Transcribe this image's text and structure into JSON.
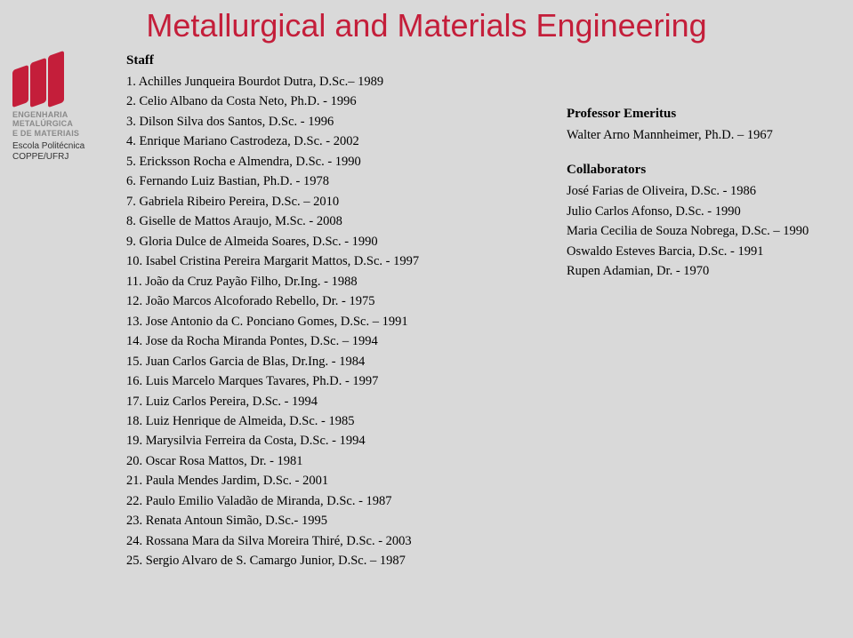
{
  "title": "Metallurgical and Materials Engineering",
  "logo": {
    "line1": "ENGENHARIA",
    "line2": "METALÚRGICA",
    "line3": "E DE MATERIAIS",
    "subline1": "Escola Politécnica",
    "subline2": "COPPE/UFRJ"
  },
  "staff_heading": "Staff",
  "staff": [
    "1. Achilles Junqueira Bourdot Dutra, D.Sc.– 1989",
    "2. Celio Albano da Costa Neto, Ph.D. - 1996",
    "3. Dilson Silva dos Santos, D.Sc. - 1996",
    "4. Enrique Mariano Castrodeza, D.Sc. - 2002",
    "5. Ericksson Rocha e Almendra, D.Sc. - 1990",
    "6. Fernando Luiz Bastian, Ph.D. - 1978",
    "7. Gabriela Ribeiro Pereira, D.Sc. – 2010",
    "8. Giselle de Mattos Araujo, M.Sc. - 2008",
    "9. Gloria Dulce de Almeida Soares, D.Sc. - 1990",
    "10. Isabel Cristina Pereira Margarit Mattos, D.Sc. - 1997",
    "11. João da Cruz Payão Filho, Dr.Ing. - 1988",
    "12. João Marcos Alcoforado Rebello, Dr. - 1975",
    "13. Jose Antonio da C. Ponciano Gomes, D.Sc. – 1991",
    "14. Jose da Rocha Miranda Pontes, D.Sc. – 1994",
    "15. Juan Carlos Garcia de Blas, Dr.Ing. - 1984",
    "16. Luis Marcelo Marques Tavares, Ph.D. - 1997",
    "17. Luiz Carlos Pereira, D.Sc. - 1994",
    "18. Luiz Henrique de Almeida, D.Sc. - 1985",
    "19. Marysilvia Ferreira da Costa, D.Sc. - 1994",
    "20. Oscar Rosa Mattos, Dr. - 1981",
    "21. Paula Mendes Jardim, D.Sc. - 2001",
    "22. Paulo Emilio Valadão de Miranda, D.Sc. - 1987",
    "23. Renata Antoun Simão, D.Sc.- 1995",
    "24. Rossana Mara da Silva Moreira Thiré, D.Sc. - 2003",
    "25. Sergio Alvaro de S. Camargo Junior, D.Sc. – 1987"
  ],
  "emeritus_heading": "Professor Emeritus",
  "emeritus": [
    "Walter Arno Mannheimer, Ph.D. – 1967"
  ],
  "collab_heading": "Collaborators",
  "collaborators": [
    "José Farias de Oliveira, D.Sc. - 1986",
    "Julio Carlos Afonso,  D.Sc. - 1990",
    "Maria Cecilia de Souza Nobrega, D.Sc. – 1990",
    "Oswaldo Esteves Barcia, D.Sc. - 1991",
    "Rupen Adamian, Dr. - 1970"
  ],
  "colors": {
    "background": "#d9d9d9",
    "title": "#c41e3a",
    "text": "#000000",
    "logo_red": "#c41e3a",
    "logo_gray": "#8a8a8a"
  }
}
